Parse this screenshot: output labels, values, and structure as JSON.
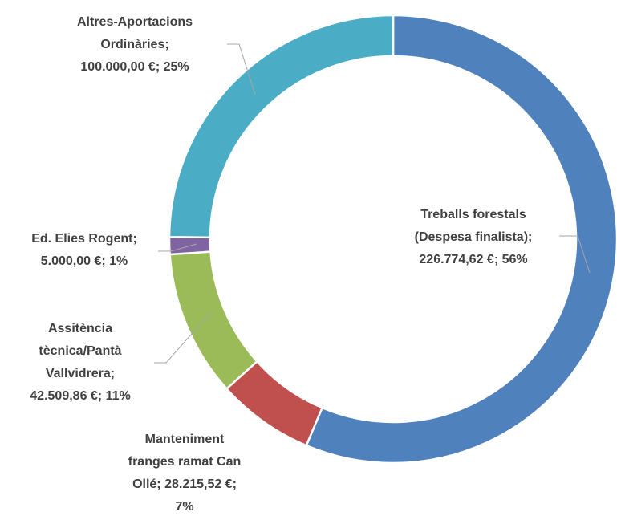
{
  "chart_data": {
    "type": "donut",
    "categories": [
      "Treballs forestals (Despesa finalista)",
      "Manteniment franges ramat Can Ollé",
      "Assitència tècnica/Pantà Vallvidrera",
      "Ed. Elies Rogent",
      "Altres-Aportacions Ordinàries"
    ],
    "values": [
      226774.62,
      28215.52,
      42509.86,
      5000,
      100000
    ],
    "value_labels": [
      [
        "Treballs forestals",
        "(Despesa finalista);",
        "226.774,62 €; 56%"
      ],
      [
        "Manteniment",
        "franges ramat Can",
        "Ollé; 28.215,52 €;",
        "7%"
      ],
      [
        "Assitència",
        "tècnica/Pantà",
        "Vallvidrera;",
        "42.509,86 €; 11%"
      ],
      [
        "Ed. Elies Rogent;",
        "5.000,00 €; 1%"
      ],
      [
        "Altres-Aportacions",
        "Ordinàries;",
        "100.000,00 €; 25%"
      ]
    ],
    "colors": [
      "#4f81bd",
      "#c0504d",
      "#9bbb59",
      "#8064a2",
      "#4bacc6"
    ]
  }
}
